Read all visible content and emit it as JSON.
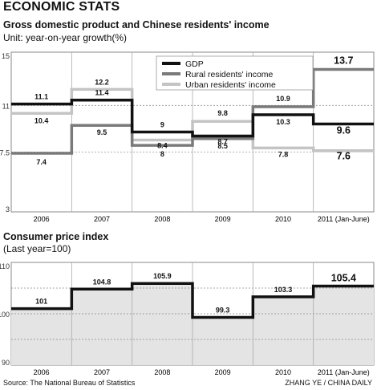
{
  "header": {
    "title": "ECONOMIC STATS"
  },
  "chart_data": [
    {
      "type": "line",
      "title": "Gross domestic product and Chinese residents' income",
      "subtitle": "Unit: year-on-year growth(%)",
      "categories": [
        "2006",
        "2007",
        "2008",
        "2009",
        "2010",
        "2011 (Jan-June)"
      ],
      "ylim": [
        3,
        15
      ],
      "yticks": [
        3,
        7.5,
        11,
        15
      ],
      "grid": true,
      "legend_position": "top-center",
      "series": [
        {
          "name": "GDP",
          "values": [
            11.1,
            11.4,
            9,
            8.7,
            10.3,
            9.6
          ],
          "labels": [
            "11.1",
            "11.4",
            "9",
            "8.7",
            "10.3",
            "9.6"
          ],
          "color": "#111111"
        },
        {
          "name": "Rural residents' income",
          "values": [
            7.4,
            9.5,
            8,
            8.5,
            10.9,
            13.7
          ],
          "labels": [
            "7.4",
            "9.5",
            "8",
            "8.5",
            "10.9",
            "13.7"
          ],
          "color": "#7a7a7a"
        },
        {
          "name": "Urban residents' income",
          "values": [
            10.4,
            12.2,
            8.4,
            9.8,
            7.8,
            7.6
          ],
          "labels": [
            "10.4",
            "12.2",
            "8.4",
            "9.8",
            "7.8",
            "7.6"
          ],
          "color": "#c4c4c4"
        }
      ]
    },
    {
      "type": "area",
      "title": "Consumer price index",
      "subtitle": "(Last year=100)",
      "categories": [
        "2006",
        "2007",
        "2008",
        "2009",
        "2010",
        "2011 (Jan-June)"
      ],
      "ylim": [
        90,
        110
      ],
      "yticks": [
        90,
        100,
        110
      ],
      "grid": true,
      "series": [
        {
          "values": [
            101,
            104.8,
            105.9,
            99.3,
            103.3,
            105.4
          ],
          "labels": [
            "101",
            "104.8",
            "105.9",
            "99.3",
            "103.3",
            "105.4"
          ],
          "color": "#111111"
        }
      ]
    }
  ],
  "footer": {
    "source": "Source: The National Bureau of Statistics",
    "credit": "ZHANG YE / CHINA DAILY"
  }
}
